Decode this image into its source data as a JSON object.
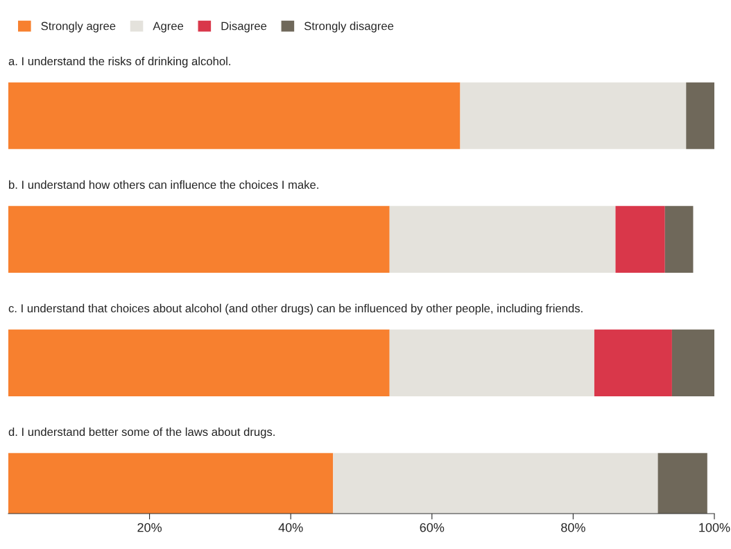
{
  "chart_data": {
    "type": "bar",
    "orientation": "horizontal",
    "stacked": true,
    "categories": [
      "a. I understand the risks of drinking alcohol.",
      "b. I understand how others can influence the choices I make.",
      "c. I understand that choices about alcohol (and other drugs) can be influenced by other people, including friends.",
      "d. I understand better some of the laws about drugs."
    ],
    "series": [
      {
        "name": "Strongly agree",
        "color": "#f7802f",
        "values": [
          64,
          54,
          54,
          46
        ]
      },
      {
        "name": "Agree",
        "color": "#e4e2dc",
        "values": [
          32,
          32,
          29,
          46
        ]
      },
      {
        "name": "Disagree",
        "color": "#d9374a",
        "values": [
          0,
          7,
          11,
          0
        ]
      },
      {
        "name": "Strongly disagree",
        "color": "#6f685a",
        "values": [
          4,
          4,
          6,
          7
        ]
      }
    ],
    "xlim": [
      0,
      100
    ],
    "xticks": [
      {
        "value": 20,
        "label": "20%"
      },
      {
        "value": 40,
        "label": "40%"
      },
      {
        "value": 60,
        "label": "60%"
      },
      {
        "value": 80,
        "label": "80%"
      },
      {
        "value": 100,
        "label": "100%"
      }
    ],
    "tick_labels": "x",
    "grid": false,
    "legend": "top left"
  }
}
